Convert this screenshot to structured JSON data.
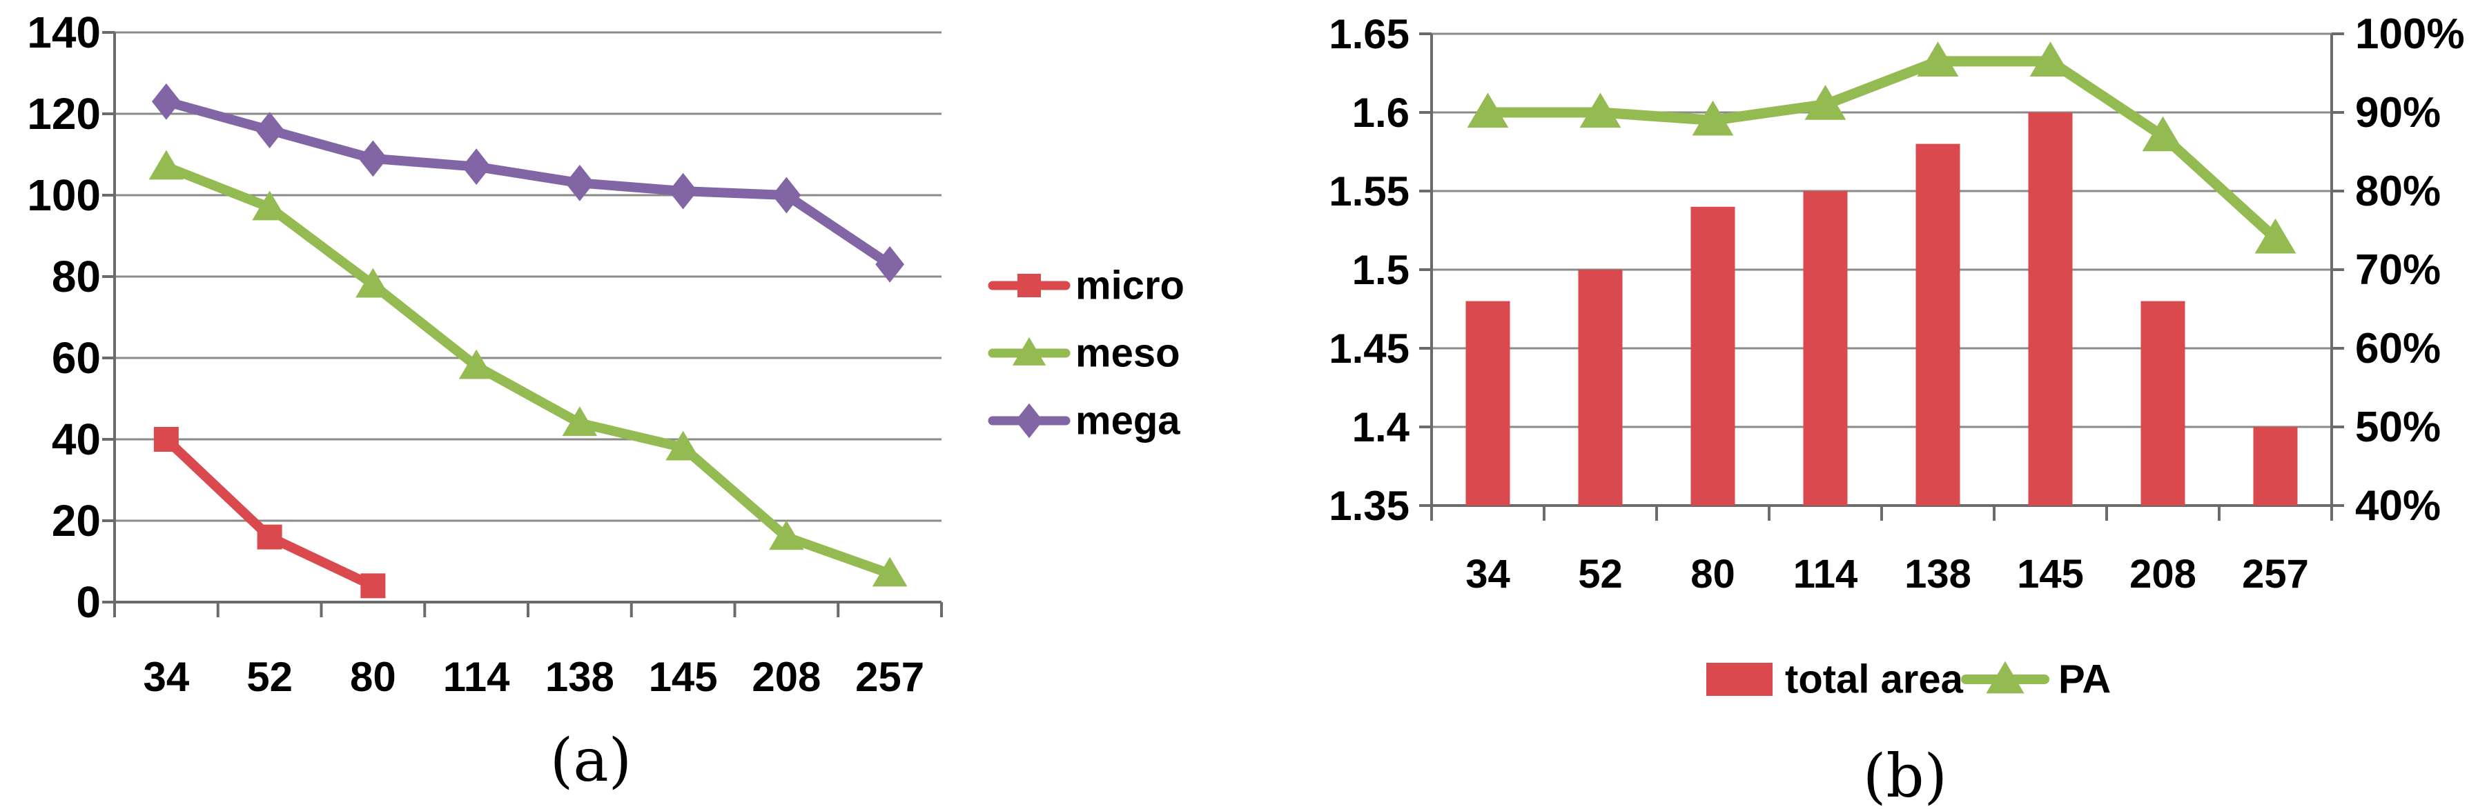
{
  "figure": {
    "caption_a": "(a)",
    "caption_b": "(b)"
  },
  "colors": {
    "red": "#D9494D",
    "green": "#94BB51",
    "purple": "#8265A4",
    "grid": "#8A8A8A",
    "axis": "#6B6B6B",
    "text": "#000000",
    "background": "#FFFFFF"
  },
  "chart_data": [
    {
      "type": "line",
      "title": "",
      "xlabel": "",
      "ylabel": "",
      "categories": [
        "34",
        "52",
        "80",
        "114",
        "138",
        "145",
        "208",
        "257"
      ],
      "series": [
        {
          "name": "micro",
          "color_key": "red",
          "marker": "square",
          "values": [
            40,
            16,
            4,
            null,
            null,
            null,
            null,
            null
          ]
        },
        {
          "name": "meso",
          "color_key": "green",
          "marker": "triangle",
          "values": [
            107,
            97,
            78,
            58,
            44,
            38,
            16,
            7
          ]
        },
        {
          "name": "mega",
          "color_key": "purple",
          "marker": "diamond",
          "values": [
            123,
            116,
            109,
            107,
            103,
            101,
            100,
            83
          ]
        }
      ],
      "ylim": [
        0,
        140
      ],
      "y_tick_values": [
        140,
        120,
        100,
        80,
        60,
        40,
        20,
        0
      ],
      "y_tick_labels": [
        "140",
        "120",
        "100",
        "80",
        "60",
        "40",
        "20",
        "0"
      ],
      "grid": true,
      "legend_position": "right"
    },
    {
      "type": "combo-bar-line",
      "title": "",
      "xlabel": "",
      "ylabel": "",
      "categories": [
        "34",
        "52",
        "80",
        "114",
        "138",
        "145",
        "208",
        "257"
      ],
      "bar_series": {
        "name": "total area",
        "color_key": "red",
        "axis": "left",
        "values": [
          1.48,
          1.5,
          1.54,
          1.55,
          1.58,
          1.6,
          1.48,
          1.4
        ]
      },
      "line_series": {
        "name": "PA",
        "color_key": "green",
        "marker": "triangle",
        "axis": "right",
        "values_percent": [
          90,
          90,
          89,
          91,
          96.5,
          96.5,
          87,
          74
        ]
      },
      "left_ylim": [
        1.35,
        1.65
      ],
      "left_tick_values": [
        1.65,
        1.6,
        1.55,
        1.5,
        1.45,
        1.4,
        1.35
      ],
      "left_tick_labels": [
        "1.65",
        "1.6",
        "1.55",
        "1.5",
        "1.45",
        "1.4",
        "1.35"
      ],
      "right_ylim": [
        40,
        100
      ],
      "right_tick_values": [
        100,
        90,
        80,
        70,
        60,
        50,
        40
      ],
      "right_tick_labels": [
        "100%",
        "90%",
        "80%",
        "70%",
        "60%",
        "50%",
        "40%"
      ],
      "grid": true,
      "legend_position": "bottom"
    }
  ]
}
